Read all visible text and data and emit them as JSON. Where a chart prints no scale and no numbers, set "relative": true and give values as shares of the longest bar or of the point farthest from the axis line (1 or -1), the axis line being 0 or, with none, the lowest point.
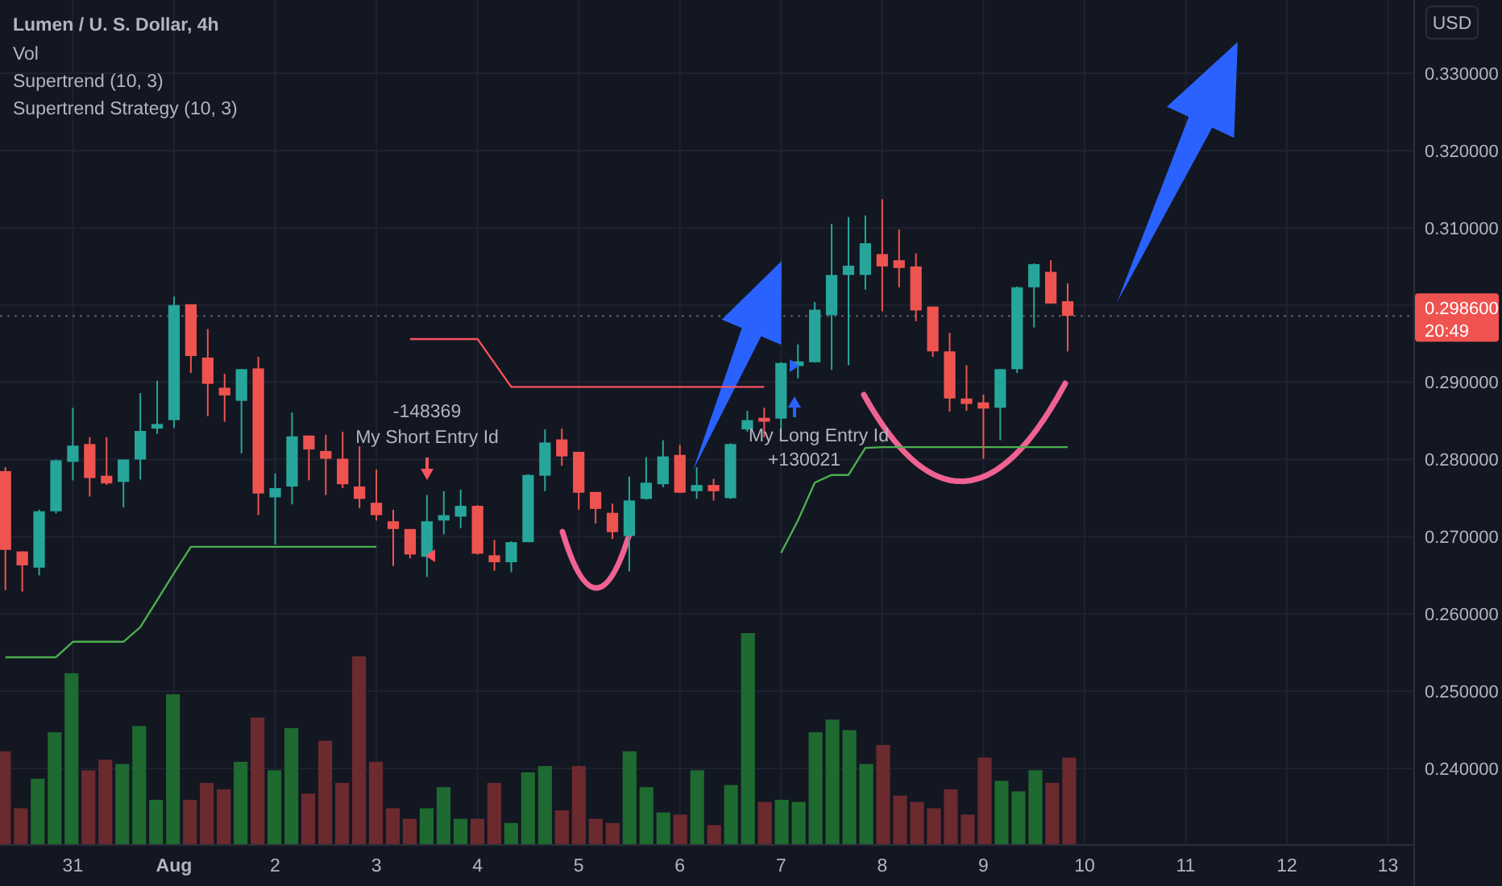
{
  "chart_data": [
    {
      "type": "candlestick",
      "title": "Lumen / U. S. Dollar, 4h",
      "ylabel": "USD",
      "x": [
        "--07-30T08:00",
        "--07-30T12:00",
        "--07-30T16:00",
        "--07-30T20:00",
        "--07-31T00:00",
        "--07-31T04:00",
        "--07-31T08:00",
        "--07-31T12:00",
        "--07-31T16:00",
        "--07-31T20:00",
        "--08-01T00:00",
        "--08-01T04:00",
        "--08-01T08:00",
        "--08-01T12:00",
        "--08-01T16:00",
        "--08-01T20:00",
        "--08-02T00:00",
        "--08-02T04:00",
        "--08-02T08:00",
        "--08-02T12:00",
        "--08-02T16:00",
        "--08-02T20:00",
        "--08-03T00:00",
        "--08-03T04:00",
        "--08-03T08:00",
        "--08-03T12:00",
        "--08-03T16:00",
        "--08-03T20:00",
        "--08-04T00:00",
        "--08-04T04:00",
        "--08-04T08:00",
        "--08-04T12:00",
        "--08-04T16:00",
        "--08-04T20:00",
        "--08-05T00:00",
        "--08-05T04:00",
        "--08-05T08:00",
        "--08-05T12:00",
        "--08-05T16:00",
        "--08-05T20:00",
        "--08-06T00:00",
        "--08-06T04:00",
        "--08-06T08:00",
        "--08-06T12:00",
        "--08-06T16:00",
        "--08-06T20:00",
        "--08-07T00:00",
        "--08-07T04:00",
        "--08-07T08:00",
        "--08-07T12:00",
        "--08-07T16:00",
        "--08-07T20:00",
        "--08-08T00:00",
        "--08-08T04:00",
        "--08-08T08:00",
        "--08-08T12:00",
        "--08-08T16:00",
        "--08-08T20:00",
        "--08-09T00:00",
        "--08-09T04:00",
        "--08-09T08:00",
        "--08-09T12:00",
        "--08-09T16:00",
        "--08-09T20:00"
      ],
      "ohlc": [
        [
          0.2785,
          0.279,
          0.2631,
          0.2683
        ],
        [
          0.2681,
          0.2681,
          0.2629,
          0.2663
        ],
        [
          0.266,
          0.2735,
          0.265,
          0.2733
        ],
        [
          0.2733,
          0.28,
          0.273,
          0.2799
        ],
        [
          0.2797,
          0.2867,
          0.2773,
          0.2818
        ],
        [
          0.282,
          0.2829,
          0.2752,
          0.2776
        ],
        [
          0.2779,
          0.2829,
          0.2767,
          0.2769
        ],
        [
          0.2771,
          0.28,
          0.2738,
          0.28
        ],
        [
          0.28,
          0.2886,
          0.2774,
          0.2837
        ],
        [
          0.284,
          0.2902,
          0.2833,
          0.2846
        ],
        [
          0.2851,
          0.3011,
          0.2841,
          0.3
        ],
        [
          0.3001,
          0.3001,
          0.2912,
          0.2934
        ],
        [
          0.2932,
          0.2969,
          0.2856,
          0.2898
        ],
        [
          0.2893,
          0.2911,
          0.2849,
          0.2883
        ],
        [
          0.2876,
          0.2917,
          0.2808,
          0.2917
        ],
        [
          0.2918,
          0.2933,
          0.2728,
          0.2756
        ],
        [
          0.2751,
          0.2782,
          0.269,
          0.2763
        ],
        [
          0.2765,
          0.2861,
          0.2742,
          0.283
        ],
        [
          0.2831,
          0.2831,
          0.2773,
          0.2813
        ],
        [
          0.2811,
          0.2832,
          0.2754,
          0.2801
        ],
        [
          0.2801,
          0.2836,
          0.2763,
          0.2768
        ],
        [
          0.2765,
          0.2817,
          0.2737,
          0.2749
        ],
        [
          0.2744,
          0.2787,
          0.2721,
          0.2728
        ],
        [
          0.272,
          0.2735,
          0.2662,
          0.271
        ],
        [
          0.271,
          0.271,
          0.2672,
          0.2677
        ],
        [
          0.2674,
          0.2754,
          0.2648,
          0.272
        ],
        [
          0.2721,
          0.2759,
          0.2703,
          0.2728
        ],
        [
          0.2726,
          0.2761,
          0.2711,
          0.274
        ],
        [
          0.274,
          0.2741,
          0.2677,
          0.2678
        ],
        [
          0.2676,
          0.2696,
          0.2656,
          0.2667
        ],
        [
          0.2667,
          0.2694,
          0.2654,
          0.2693
        ],
        [
          0.2693,
          0.2781,
          0.2693,
          0.278
        ],
        [
          0.2779,
          0.2839,
          0.2759,
          0.2822
        ],
        [
          0.2826,
          0.284,
          0.2792,
          0.2804
        ],
        [
          0.281,
          0.281,
          0.2735,
          0.2757
        ],
        [
          0.2758,
          0.2758,
          0.2717,
          0.2736
        ],
        [
          0.2731,
          0.2743,
          0.2697,
          0.2706
        ],
        [
          0.2701,
          0.2778,
          0.2655,
          0.2747
        ],
        [
          0.2749,
          0.2803,
          0.2748,
          0.277
        ],
        [
          0.2768,
          0.2825,
          0.2764,
          0.2804
        ],
        [
          0.2806,
          0.2819,
          0.2757,
          0.2757
        ],
        [
          0.2759,
          0.279,
          0.2749,
          0.2767
        ],
        [
          0.2767,
          0.2775,
          0.2747,
          0.2759
        ],
        [
          0.275,
          0.2821,
          0.2749,
          0.282
        ],
        [
          0.2839,
          0.2863,
          0.2836,
          0.2851
        ],
        [
          0.2854,
          0.2867,
          0.2829,
          0.2849
        ],
        [
          0.2853,
          0.2926,
          0.2839,
          0.2925
        ],
        [
          0.2921,
          0.2949,
          0.2905,
          0.2927
        ],
        [
          0.2926,
          0.3004,
          0.2926,
          0.2994
        ],
        [
          0.2987,
          0.3105,
          0.2916,
          0.3039
        ],
        [
          0.3039,
          0.3114,
          0.2922,
          0.3051
        ],
        [
          0.3039,
          0.3116,
          0.302,
          0.308
        ],
        [
          0.3066,
          0.3137,
          0.2992,
          0.305
        ],
        [
          0.3058,
          0.3098,
          0.3023,
          0.3048
        ],
        [
          0.305,
          0.3067,
          0.2979,
          0.2993
        ],
        [
          0.2998,
          0.2998,
          0.2933,
          0.294
        ],
        [
          0.294,
          0.2964,
          0.2862,
          0.2879
        ],
        [
          0.2879,
          0.2922,
          0.2863,
          0.2872
        ],
        [
          0.2874,
          0.2884,
          0.2801,
          0.2866
        ],
        [
          0.2867,
          0.2917,
          0.2825,
          0.2917
        ],
        [
          0.2917,
          0.3024,
          0.2912,
          0.3023
        ],
        [
          0.3023,
          0.3054,
          0.2971,
          0.3053
        ],
        [
          0.3043,
          0.3058,
          0.3002,
          0.3002
        ],
        [
          0.3005,
          0.3028,
          0.294,
          0.2986
        ]
      ],
      "series": [
        {
          "type": "line",
          "color": "#4caf50",
          "values": [
            0.2544,
            0.2544,
            0.2544,
            0.2544,
            0.2564,
            0.2564,
            0.2564,
            0.2564,
            0.2583,
            0.2618,
            0.2653,
            0.2687,
            0.2687,
            0.2687,
            0.2687,
            0.2687,
            0.2687,
            0.2687,
            0.2687,
            0.2687,
            0.2687,
            0.2687,
            0.2687,
            null,
            null,
            null,
            null,
            null,
            null,
            null,
            null,
            null,
            null,
            null,
            null,
            null,
            null,
            null,
            null,
            null,
            null,
            null,
            null,
            null,
            null,
            null,
            null,
            null,
            null,
            null,
            null,
            null,
            null,
            null,
            null,
            null,
            null,
            null,
            null,
            null,
            null,
            null,
            null,
            null
          ]
        },
        {
          "type": "line",
          "color": "#f7525f",
          "values": [
            null,
            null,
            null,
            null,
            null,
            null,
            null,
            null,
            null,
            null,
            null,
            null,
            null,
            null,
            null,
            null,
            null,
            null,
            null,
            null,
            null,
            null,
            null,
            null,
            0.2956,
            0.2956,
            0.2956,
            0.2956,
            0.2956,
            0.2925,
            0.2894,
            0.2894,
            0.2894,
            0.2894,
            0.2894,
            0.2894,
            0.2894,
            0.2894,
            0.2894,
            0.2894,
            0.2894,
            0.2894,
            0.2894,
            0.2894,
            0.2894,
            0.2894,
            null,
            null,
            null,
            null,
            null,
            null,
            null,
            null,
            null,
            null,
            null,
            null,
            null,
            null,
            null,
            null,
            null,
            null
          ]
        },
        {
          "type": "line",
          "color": "#4caf50",
          "values": [
            null,
            null,
            null,
            null,
            null,
            null,
            null,
            null,
            null,
            null,
            null,
            null,
            null,
            null,
            null,
            null,
            null,
            null,
            null,
            null,
            null,
            null,
            null,
            null,
            null,
            null,
            null,
            null,
            null,
            null,
            null,
            null,
            null,
            null,
            null,
            null,
            null,
            null,
            null,
            null,
            null,
            null,
            null,
            null,
            null,
            null,
            0.2679,
            0.2721,
            0.277,
            0.278,
            0.278,
            0.2815,
            0.2816,
            0.2816,
            0.2816,
            0.2816,
            0.2816,
            0.2816,
            0.2816,
            0.2816,
            0.2816,
            0.2816,
            0.2816,
            0.2816
          ]
        }
      ],
      "xlim": [
        "--07-30T06:43",
        "--08-13T06:00"
      ],
      "xticks": [
        {
          "value": "--07-31",
          "label": "31"
        },
        {
          "value": "--08-01",
          "label": "Aug"
        },
        {
          "value": "--08-02",
          "label": "2"
        },
        {
          "value": "--08-03",
          "label": "3"
        },
        {
          "value": "--08-04",
          "label": "4"
        },
        {
          "value": "--08-05",
          "label": "5"
        },
        {
          "value": "--08-06",
          "label": "6"
        },
        {
          "value": "--08-07",
          "label": "7"
        },
        {
          "value": "--08-08",
          "label": "8"
        },
        {
          "value": "--08-09",
          "label": "9"
        },
        {
          "value": "--08-10",
          "label": "10"
        },
        {
          "value": "--08-11",
          "label": "11"
        },
        {
          "value": "--08-12",
          "label": "12"
        },
        {
          "value": "--08-13",
          "label": "13"
        }
      ],
      "ylim": [
        0.2302,
        0.3395
      ],
      "yticks": [
        {
          "value": 0.24,
          "label": "0.240000"
        },
        {
          "value": 0.25,
          "label": "0.250000"
        },
        {
          "value": 0.26,
          "label": "0.260000"
        },
        {
          "value": 0.27,
          "label": "0.270000"
        },
        {
          "value": 0.28,
          "label": "0.280000"
        },
        {
          "value": 0.29,
          "label": "0.290000"
        },
        {
          "value": 0.3,
          "label": null
        },
        {
          "value": 0.31,
          "label": "0.310000"
        },
        {
          "value": 0.32,
          "label": "0.320000"
        },
        {
          "value": 0.33,
          "label": "0.330000"
        }
      ],
      "grid": true,
      "ref_lines": [
        {
          "axis": "y",
          "value": 0.2986,
          "label": "0.298600",
          "color": "#5d606b",
          "line_style": "dotted"
        }
      ],
      "annotations": [
        "Vol",
        "Supertrend (10, 3)",
        "Supertrend Strategy (10, 3)",
        "20:49",
        "-148369",
        "My Short Entry Id",
        "My Long Entry Id",
        "+130021"
      ]
    },
    {
      "type": "bar",
      "relative": true,
      "categories": [
        null,
        null,
        null,
        null,
        null,
        null,
        null,
        null,
        null,
        null,
        null,
        null,
        null,
        null,
        null,
        null,
        null,
        null,
        null,
        null,
        null,
        null,
        null,
        null,
        null,
        null,
        null,
        null,
        null,
        null,
        null,
        null,
        null,
        null,
        null,
        null,
        null,
        null,
        null,
        null,
        null,
        null,
        null,
        null,
        null,
        null,
        null,
        null,
        null,
        null,
        null,
        null,
        null,
        null,
        null,
        null,
        null,
        null,
        null,
        null,
        null,
        null,
        null,
        null
      ],
      "values": [
        0.44,
        0.17,
        0.31,
        0.53,
        0.81,
        0.35,
        0.4,
        0.38,
        0.56,
        0.21,
        0.71,
        0.21,
        0.29,
        0.26,
        0.39,
        0.6,
        0.35,
        0.55,
        0.24,
        0.49,
        0.29,
        0.89,
        0.39,
        0.17,
        0.12,
        0.17,
        0.27,
        0.12,
        0.12,
        0.29,
        0.1,
        0.34,
        0.37,
        0.16,
        0.37,
        0.12,
        0.1,
        0.44,
        0.27,
        0.15,
        0.14,
        0.35,
        0.09,
        0.28,
        1,
        0.2,
        0.21,
        0.2,
        0.53,
        0.59,
        0.54,
        0.38,
        0.47,
        0.23,
        0.2,
        0.17,
        0.26,
        0.14,
        0.41,
        0.3,
        0.25,
        0.35,
        0.29,
        0.41
      ],
      "colors": [
        "#6b2a2e",
        "#6b2a2e",
        "#1e6a30",
        "#1e6a30",
        "#1e6a30",
        "#6b2a2e",
        "#6b2a2e",
        "#1e6a30",
        "#1e6a30",
        "#1e6a30",
        "#1e6a30",
        "#6b2a2e",
        "#6b2a2e",
        "#6b2a2e",
        "#1e6a30",
        "#6b2a2e",
        "#1e6a30",
        "#1e6a30",
        "#6b2a2e",
        "#6b2a2e",
        "#6b2a2e",
        "#6b2a2e",
        "#6b2a2e",
        "#6b2a2e",
        "#6b2a2e",
        "#1e6a30",
        "#1e6a30",
        "#1e6a30",
        "#6b2a2e",
        "#6b2a2e",
        "#1e6a30",
        "#1e6a30",
        "#1e6a30",
        "#6b2a2e",
        "#6b2a2e",
        "#6b2a2e",
        "#6b2a2e",
        "#1e6a30",
        "#1e6a30",
        "#1e6a30",
        "#6b2a2e",
        "#1e6a30",
        "#6b2a2e",
        "#1e6a30",
        "#1e6a30",
        "#6b2a2e",
        "#1e6a30",
        "#1e6a30",
        "#1e6a30",
        "#1e6a30",
        "#1e6a30",
        "#1e6a30",
        "#6b2a2e",
        "#6b2a2e",
        "#6b2a2e",
        "#6b2a2e",
        "#6b2a2e",
        "#6b2a2e",
        "#6b2a2e",
        "#1e6a30",
        "#1e6a30",
        "#1e6a30",
        "#6b2a2e",
        "#6b2a2e"
      ]
    }
  ]
}
